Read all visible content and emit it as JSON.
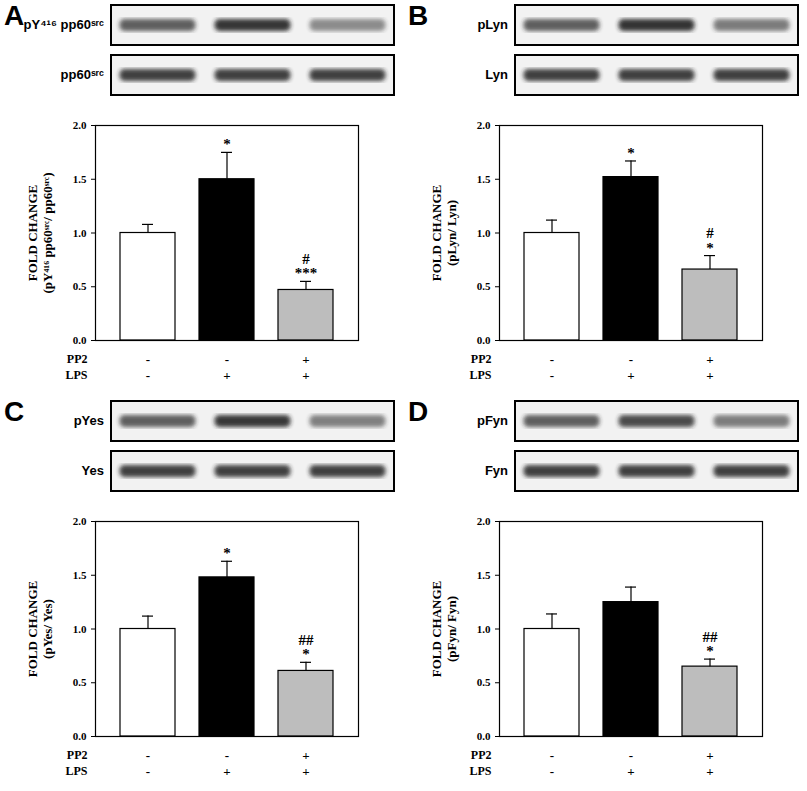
{
  "chart_data": [
    {
      "type": "bar",
      "title": "A",
      "blot_labels": [
        "pY⁴¹⁶ pp60ˢʳᶜ",
        "pp60ˢʳᶜ"
      ],
      "y_label": [
        "FOLD CHANGE",
        "(pY⁴¹⁶ pp60ˢʳᶜ/ pp60ˢʳᶜ)"
      ],
      "categories": [
        null,
        null,
        null
      ],
      "values": [
        1.0,
        1.5,
        0.47
      ],
      "errors": [
        0.08,
        0.25,
        0.08
      ],
      "significance": [
        [],
        [
          "*"
        ],
        [
          "#",
          "***"
        ]
      ],
      "treatments": [
        {
          "name": "PP2",
          "values": [
            "-",
            "-",
            "+"
          ]
        },
        {
          "name": "LPS",
          "values": [
            "-",
            "+",
            "+"
          ]
        }
      ],
      "colors": [
        "#ffffff",
        "#000000",
        "#bdbdbd"
      ],
      "ylim": [
        0,
        2
      ],
      "yticks": [
        {
          "value": 0,
          "label": "0.0"
        },
        {
          "value": 0.5,
          "label": "0.5"
        },
        {
          "value": 1,
          "label": "1.0"
        },
        {
          "value": 1.5,
          "label": "1.5"
        },
        {
          "value": 2,
          "label": "2.0"
        }
      ],
      "tick_labels": "y"
    },
    {
      "type": "bar",
      "title": "B",
      "blot_labels": [
        "pLyn",
        "Lyn"
      ],
      "y_label": [
        "FOLD CHANGE",
        "(pLyn/ Lyn)"
      ],
      "categories": [
        null,
        null,
        null
      ],
      "values": [
        1.0,
        1.52,
        0.66
      ],
      "errors": [
        0.12,
        0.15,
        0.13
      ],
      "significance": [
        [],
        [
          "*"
        ],
        [
          "#",
          "*"
        ]
      ],
      "treatments": [
        {
          "name": "PP2",
          "values": [
            "-",
            "-",
            "+"
          ]
        },
        {
          "name": "LPS",
          "values": [
            "-",
            "+",
            "+"
          ]
        }
      ],
      "colors": [
        "#ffffff",
        "#000000",
        "#bdbdbd"
      ],
      "ylim": [
        0,
        2
      ],
      "yticks": [
        {
          "value": 0,
          "label": "0.0"
        },
        {
          "value": 0.5,
          "label": "0.5"
        },
        {
          "value": 1,
          "label": "1.0"
        },
        {
          "value": 1.5,
          "label": "1.5"
        },
        {
          "value": 2,
          "label": "2.0"
        }
      ],
      "tick_labels": "y"
    },
    {
      "type": "bar",
      "title": "C",
      "blot_labels": [
        "pYes",
        "Yes"
      ],
      "y_label": [
        "FOLD CHANGE",
        "(pYes/ Yes)"
      ],
      "categories": [
        null,
        null,
        null
      ],
      "values": [
        1.0,
        1.48,
        0.61
      ],
      "errors": [
        0.12,
        0.15,
        0.08
      ],
      "significance": [
        [],
        [
          "*"
        ],
        [
          "##",
          "*"
        ]
      ],
      "treatments": [
        {
          "name": "PP2",
          "values": [
            "-",
            "-",
            "+"
          ]
        },
        {
          "name": "LPS",
          "values": [
            "-",
            "+",
            "+"
          ]
        }
      ],
      "colors": [
        "#ffffff",
        "#000000",
        "#bdbdbd"
      ],
      "ylim": [
        0,
        2
      ],
      "yticks": [
        {
          "value": 0,
          "label": "0.0"
        },
        {
          "value": 0.5,
          "label": "0.5"
        },
        {
          "value": 1,
          "label": "1.0"
        },
        {
          "value": 1.5,
          "label": "1.5"
        },
        {
          "value": 2,
          "label": "2.0"
        }
      ],
      "tick_labels": "y"
    },
    {
      "type": "bar",
      "title": "D",
      "blot_labels": [
        "pFyn",
        "Fyn"
      ],
      "y_label": [
        "FOLD CHANGE",
        "(pFyn/ Fyn)"
      ],
      "categories": [
        null,
        null,
        null
      ],
      "values": [
        1.0,
        1.25,
        0.65
      ],
      "errors": [
        0.14,
        0.14,
        0.07
      ],
      "significance": [
        [],
        [],
        [
          "##",
          "*"
        ]
      ],
      "treatments": [
        {
          "name": "PP2",
          "values": [
            "-",
            "-",
            "+"
          ]
        },
        {
          "name": "LPS",
          "values": [
            "-",
            "+",
            "+"
          ]
        }
      ],
      "colors": [
        "#ffffff",
        "#000000",
        "#bdbdbd"
      ],
      "ylim": [
        0,
        2
      ],
      "yticks": [
        {
          "value": 0,
          "label": "0.0"
        },
        {
          "value": 0.5,
          "label": "0.5"
        },
        {
          "value": 1,
          "label": "1.0"
        },
        {
          "value": 1.5,
          "label": "1.5"
        },
        {
          "value": 2,
          "label": "2.0"
        }
      ],
      "tick_labels": "y"
    }
  ]
}
